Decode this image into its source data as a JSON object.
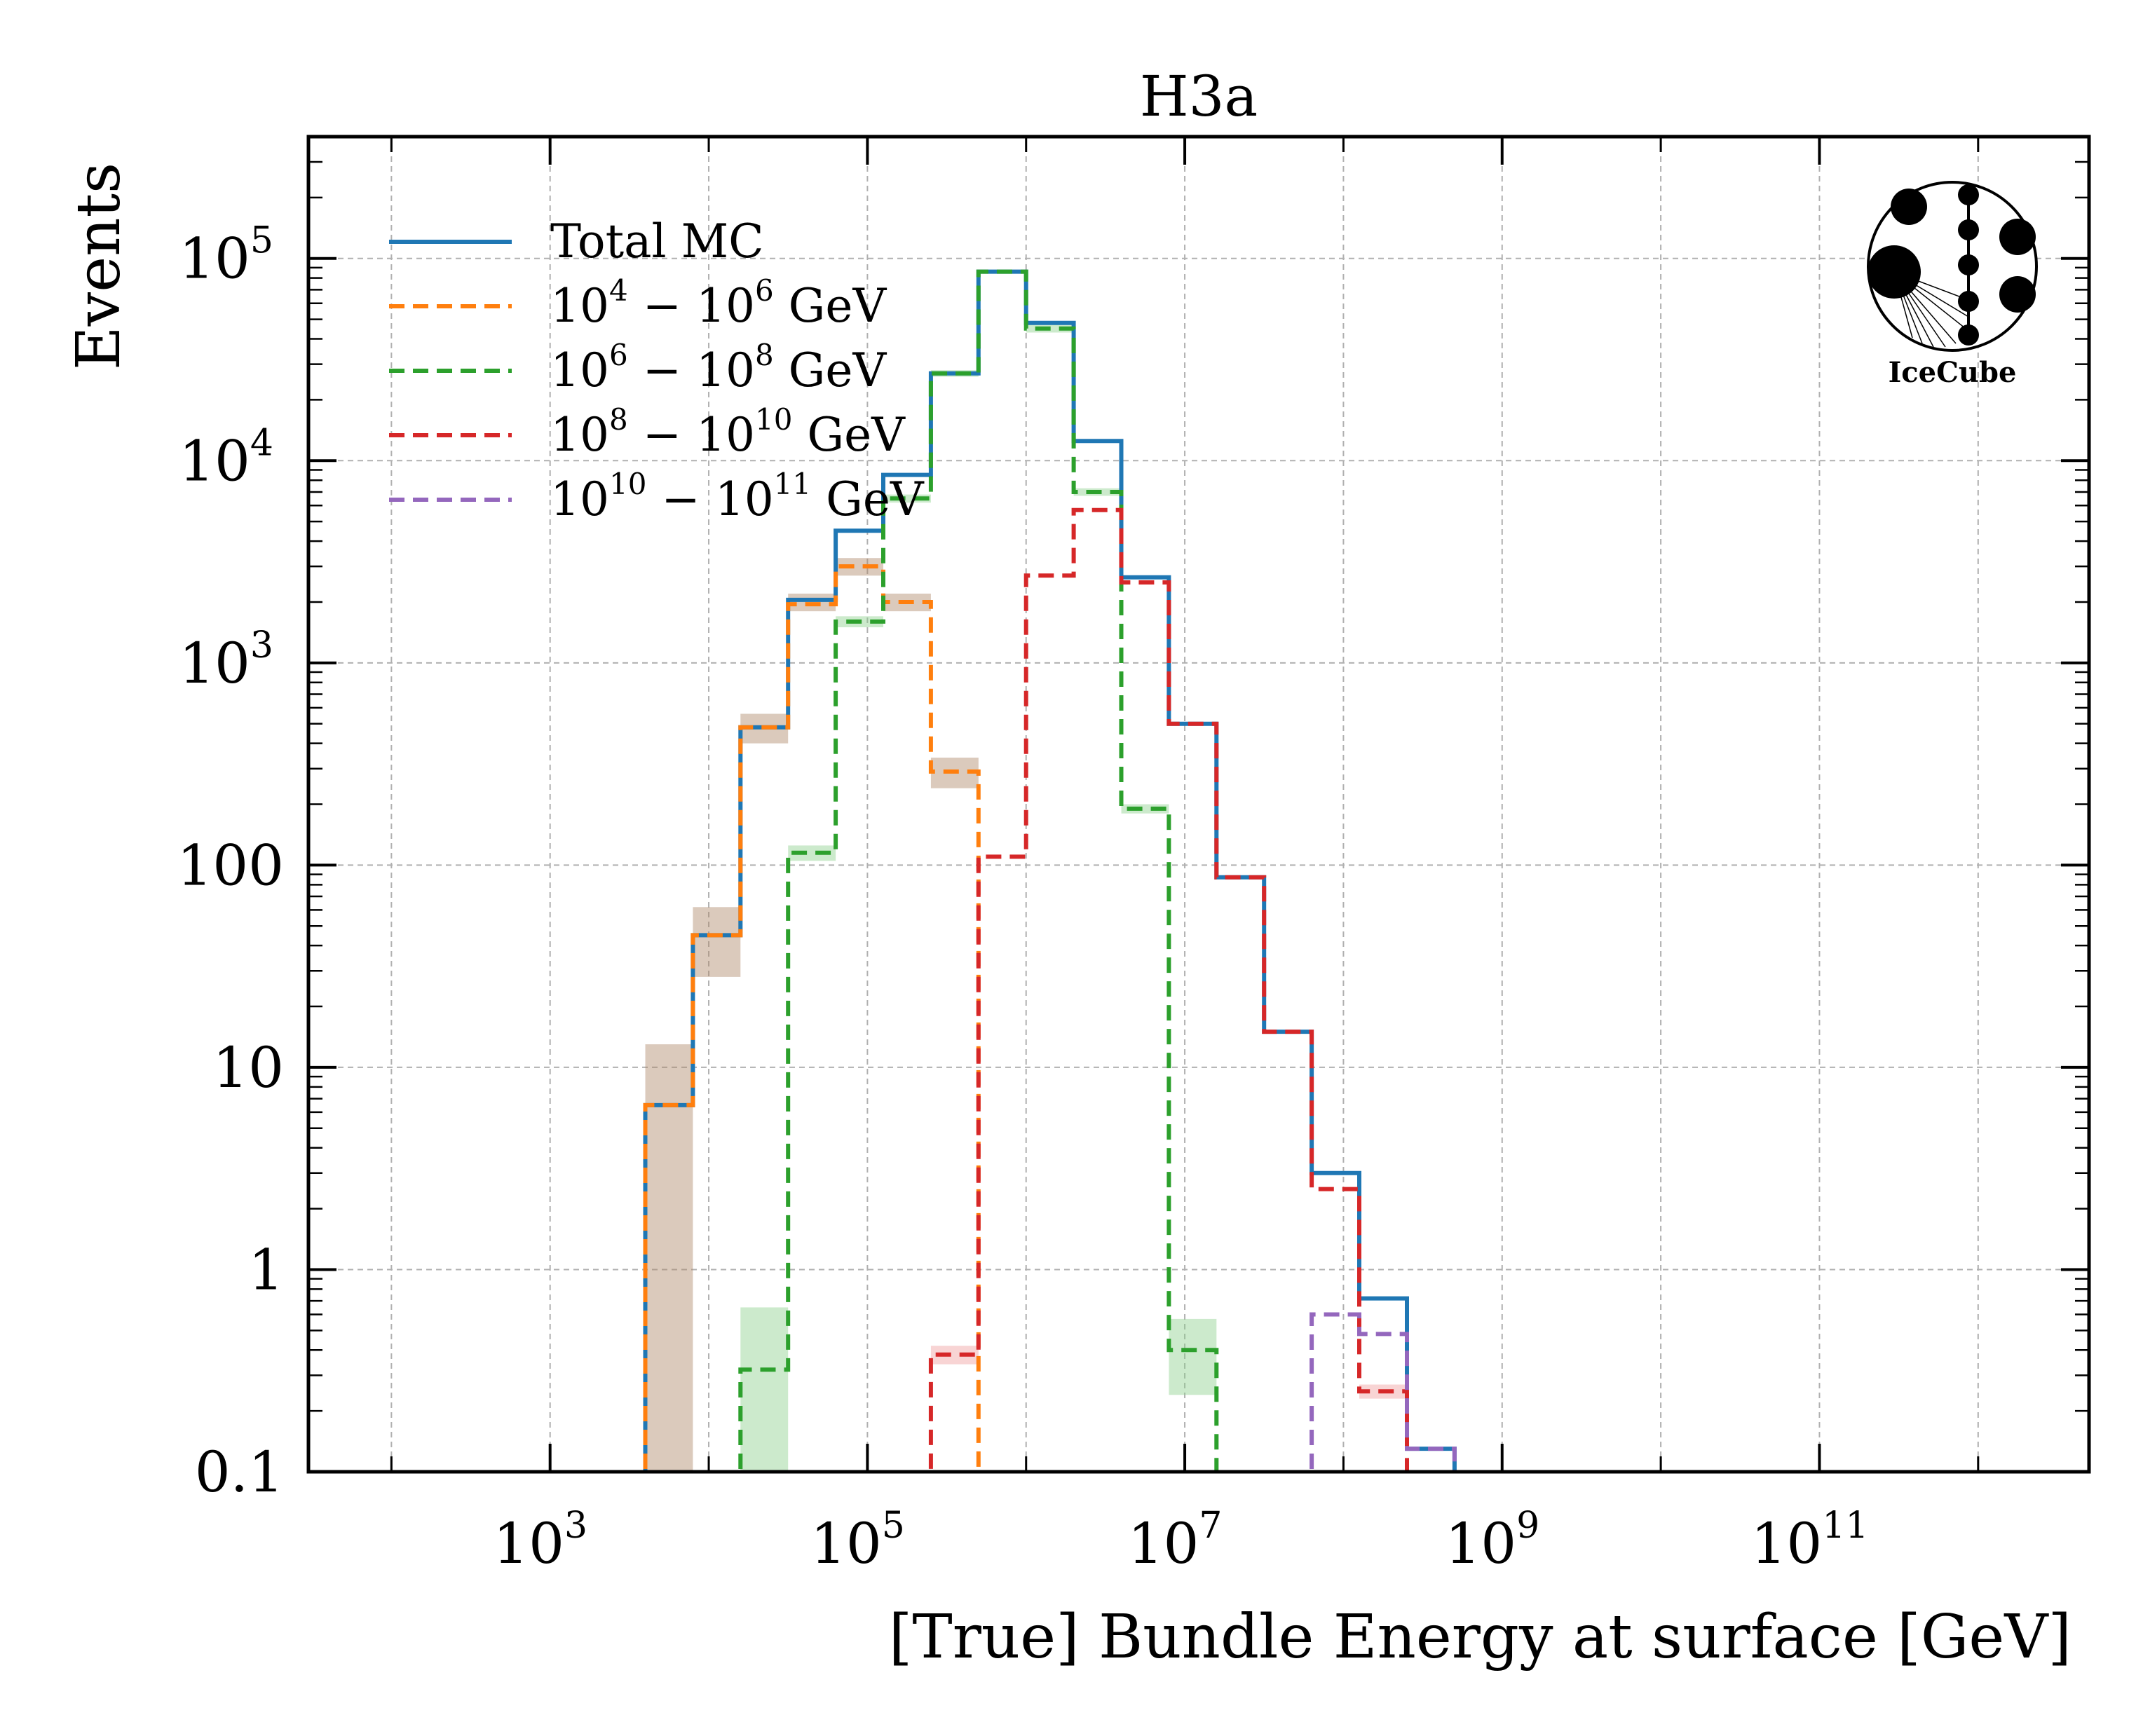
{
  "chart_data": {
    "type": "histogram",
    "title": "H3a",
    "xlabel": "[True] Bundle Energy at surface [GeV]",
    "ylabel": "Events",
    "xscale": "log",
    "yscale": "log",
    "xlim": [
      30,
      5000000000000
    ],
    "ylim": [
      0.1,
      400000
    ],
    "grid": true,
    "legend_position": "top-left",
    "x_ticks": [
      {
        "base": "10",
        "exp": "3",
        "value": 1000
      },
      {
        "base": "10",
        "exp": "5",
        "value": 100000
      },
      {
        "base": "10",
        "exp": "7",
        "value": 10000000
      },
      {
        "base": "10",
        "exp": "9",
        "value": 1000000000
      },
      {
        "base": "10",
        "exp": "11",
        "value": 100000000000
      }
    ],
    "y_ticks": [
      {
        "base": "0.1",
        "exp": "",
        "value": 0.1
      },
      {
        "base": "1",
        "exp": "",
        "value": 1
      },
      {
        "base": "10",
        "exp": "",
        "value": 10
      },
      {
        "base": "100",
        "exp": "",
        "value": 100
      },
      {
        "base": "10",
        "exp": "3",
        "value": 1000
      },
      {
        "base": "10",
        "exp": "4",
        "value": 10000
      },
      {
        "base": "10",
        "exp": "5",
        "value": 100000
      }
    ],
    "bin_edges_log10": [
      3.6,
      3.9,
      4.2,
      4.5,
      4.8,
      5.1,
      5.4,
      5.7,
      6.0,
      6.3,
      6.6,
      6.9,
      7.2,
      7.5,
      7.8,
      8.1,
      8.4,
      8.7
    ],
    "series": [
      {
        "name": "Total MC",
        "color": "#1f77b4",
        "style": "solid",
        "values": [
          6.5,
          45,
          480,
          2050,
          4500,
          8500,
          27000,
          86000,
          48000,
          12500,
          2650,
          500,
          87,
          15,
          3.0,
          0.72,
          0.13
        ],
        "band": null
      },
      {
        "name_parts": {
          "a": "10",
          "ae": "4",
          "b": "10",
          "be": "6",
          "unit": "GeV"
        },
        "color": "#ff7f0e",
        "style": "dashed",
        "values": [
          6.5,
          45,
          480,
          1950,
          3000,
          2000,
          290,
          0.05,
          null,
          null,
          null,
          null,
          null,
          null,
          null,
          null,
          null
        ],
        "band": [
          [
            0.1,
            13
          ],
          [
            28,
            62
          ],
          [
            400,
            560
          ],
          [
            1800,
            2200
          ],
          [
            2700,
            3300
          ],
          [
            1800,
            2200
          ],
          [
            240,
            340
          ],
          null,
          null,
          null,
          null,
          null,
          null,
          null,
          null,
          null,
          null
        ]
      },
      {
        "name_parts": {
          "a": "10",
          "ae": "6",
          "b": "10",
          "be": "8",
          "unit": "GeV"
        },
        "color": "#2ca02c",
        "style": "dashed",
        "values": [
          null,
          null,
          0.32,
          115,
          1600,
          6500,
          27000,
          86000,
          45000,
          7000,
          190,
          0.4,
          0.05,
          null,
          null,
          null,
          null
        ],
        "band": [
          null,
          null,
          [
            0.1,
            0.65
          ],
          [
            105,
            125
          ],
          [
            1500,
            1700
          ],
          [
            6200,
            6800
          ],
          [
            26000,
            28000
          ],
          [
            84000,
            88000
          ],
          [
            43000,
            47000
          ],
          [
            6700,
            7300
          ],
          [
            180,
            200
          ],
          [
            0.24,
            0.57
          ],
          null,
          null,
          null,
          null,
          null
        ]
      },
      {
        "name_parts": {
          "a": "10",
          "ae": "8",
          "b": "10",
          "be": "10",
          "unit": "GeV"
        },
        "color": "#d62728",
        "style": "dashed",
        "values": [
          null,
          null,
          null,
          null,
          null,
          0.05,
          0.38,
          110,
          2700,
          5700,
          2500,
          500,
          87,
          15,
          2.5,
          0.25,
          0.05
        ],
        "band": [
          null,
          null,
          null,
          null,
          null,
          null,
          [
            0.34,
            0.42
          ],
          null,
          null,
          null,
          null,
          null,
          null,
          null,
          null,
          [
            0.23,
            0.27
          ],
          null
        ]
      },
      {
        "name_parts": {
          "a": "10",
          "ae": "10",
          "b": "10",
          "be": "11",
          "unit": "GeV"
        },
        "color": "#9467bd",
        "style": "dashed",
        "values": [
          null,
          null,
          null,
          null,
          null,
          null,
          null,
          null,
          null,
          null,
          null,
          null,
          null,
          null,
          0.6,
          0.48,
          0.13
        ],
        "band": null
      }
    ]
  },
  "logo": {
    "label": "IceCube"
  }
}
